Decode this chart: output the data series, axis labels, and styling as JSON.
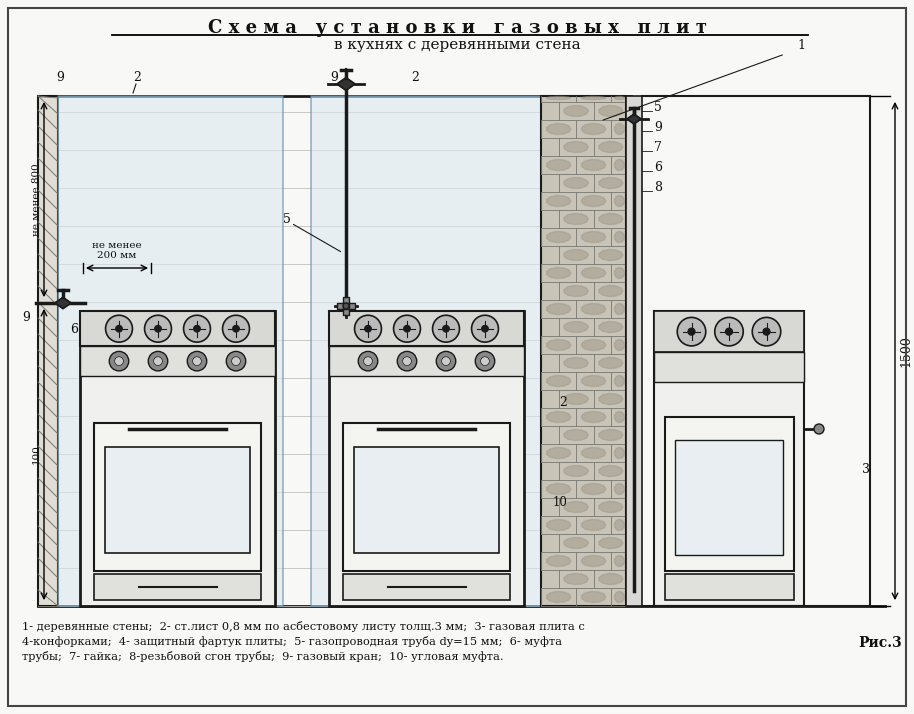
{
  "title_line1": "С х е м а   у с т а н о в к и   г а з о в ы х   п л и т",
  "title_line2": "в кухнях с деревянными стена",
  "caption_line1": "1- деревянные стены;  2- ст.лист 0,8 мм по асбестовому листу толщ.3 мм;  3- газовая плита с",
  "caption_line2": "4-конфорками;  4- защитный фартук плиты;  5- газопроводная труба dy=15 мм;  6- муфта",
  "caption_line3": "трубы;  7- гайка;  8-резьбовой сгон трубы;  9- газовый кран;  10- угловая муфта.",
  "fig_label": "Рис.3",
  "bg_color": "#f8f8f6",
  "wall_fill": "#e0ddd5",
  "panel_fill": "#dce8f0",
  "stove_fill": "#f0f0ee",
  "stove_outline": "#1a1a1a",
  "line_color": "#1a1a1a",
  "dim_color": "#222222",
  "text_color": "#111111",
  "label_color": "#111111"
}
